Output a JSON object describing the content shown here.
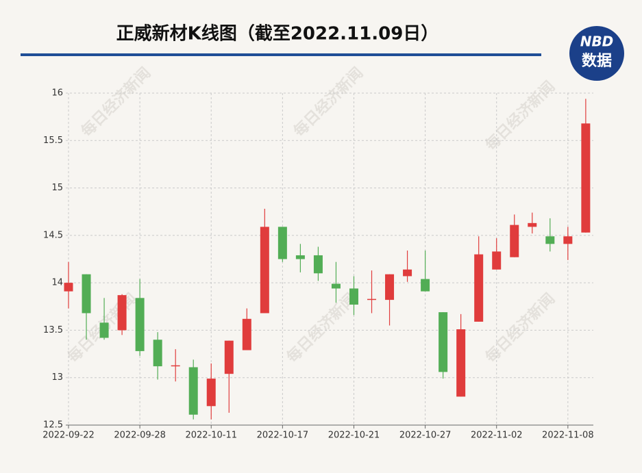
{
  "header": {
    "title": "正威新材K线图（截至2022.11.09日）",
    "logo_top": "NBD",
    "logo_bottom": "数据"
  },
  "watermark": "每日经济新闻",
  "chart_data": {
    "type": "candlestick",
    "categories": [
      "2022-09-22",
      null,
      null,
      null,
      "2022-09-28",
      null,
      null,
      null,
      "2022-10-11",
      null,
      null,
      null,
      "2022-10-17",
      null,
      null,
      null,
      "2022-10-21",
      null,
      null,
      null,
      "2022-10-27",
      null,
      null,
      null,
      "2022-11-02",
      null,
      null,
      null,
      "2022-11-08",
      null
    ],
    "open": [
      13.91,
      14.09,
      13.58,
      13.5,
      13.84,
      13.4,
      13.12,
      13.11,
      12.7,
      13.04,
      13.29,
      13.68,
      14.59,
      14.29,
      14.29,
      13.99,
      13.94,
      13.82,
      13.82,
      14.07,
      14.04,
      13.69,
      12.8,
      13.59,
      14.14,
      14.27,
      14.59,
      14.49,
      14.41,
      14.53
    ],
    "high": [
      14.22,
      14.09,
      13.84,
      13.88,
      14.04,
      13.48,
      13.3,
      13.19,
      13.15,
      13.39,
      13.73,
      14.78,
      14.59,
      14.41,
      14.38,
      14.22,
      14.07,
      14.13,
      14.09,
      14.34,
      14.34,
      13.69,
      13.67,
      14.49,
      14.47,
      14.72,
      14.74,
      14.68,
      14.59,
      15.94
    ],
    "low": [
      13.73,
      13.4,
      13.4,
      13.45,
      13.23,
      12.98,
      12.96,
      12.56,
      12.56,
      12.63,
      13.29,
      13.68,
      14.22,
      14.11,
      14.02,
      13.79,
      13.66,
      13.68,
      13.55,
      14.01,
      13.91,
      12.99,
      12.8,
      13.59,
      14.14,
      14.27,
      14.52,
      14.33,
      14.24,
      14.53
    ],
    "close": [
      14.0,
      13.68,
      13.42,
      13.87,
      13.28,
      13.12,
      13.13,
      12.61,
      12.99,
      13.39,
      13.62,
      14.59,
      14.25,
      14.25,
      14.1,
      13.94,
      13.77,
      13.83,
      14.09,
      14.14,
      13.91,
      13.06,
      13.51,
      14.3,
      14.33,
      14.61,
      14.63,
      14.41,
      14.49,
      15.68
    ],
    "up_color": "#e03c3c",
    "down_color": "#52ad55",
    "ylim": [
      12.5,
      16
    ],
    "yticks": [
      12.5,
      13,
      13.5,
      14,
      14.5,
      15,
      15.5,
      16
    ],
    "grid": true
  }
}
